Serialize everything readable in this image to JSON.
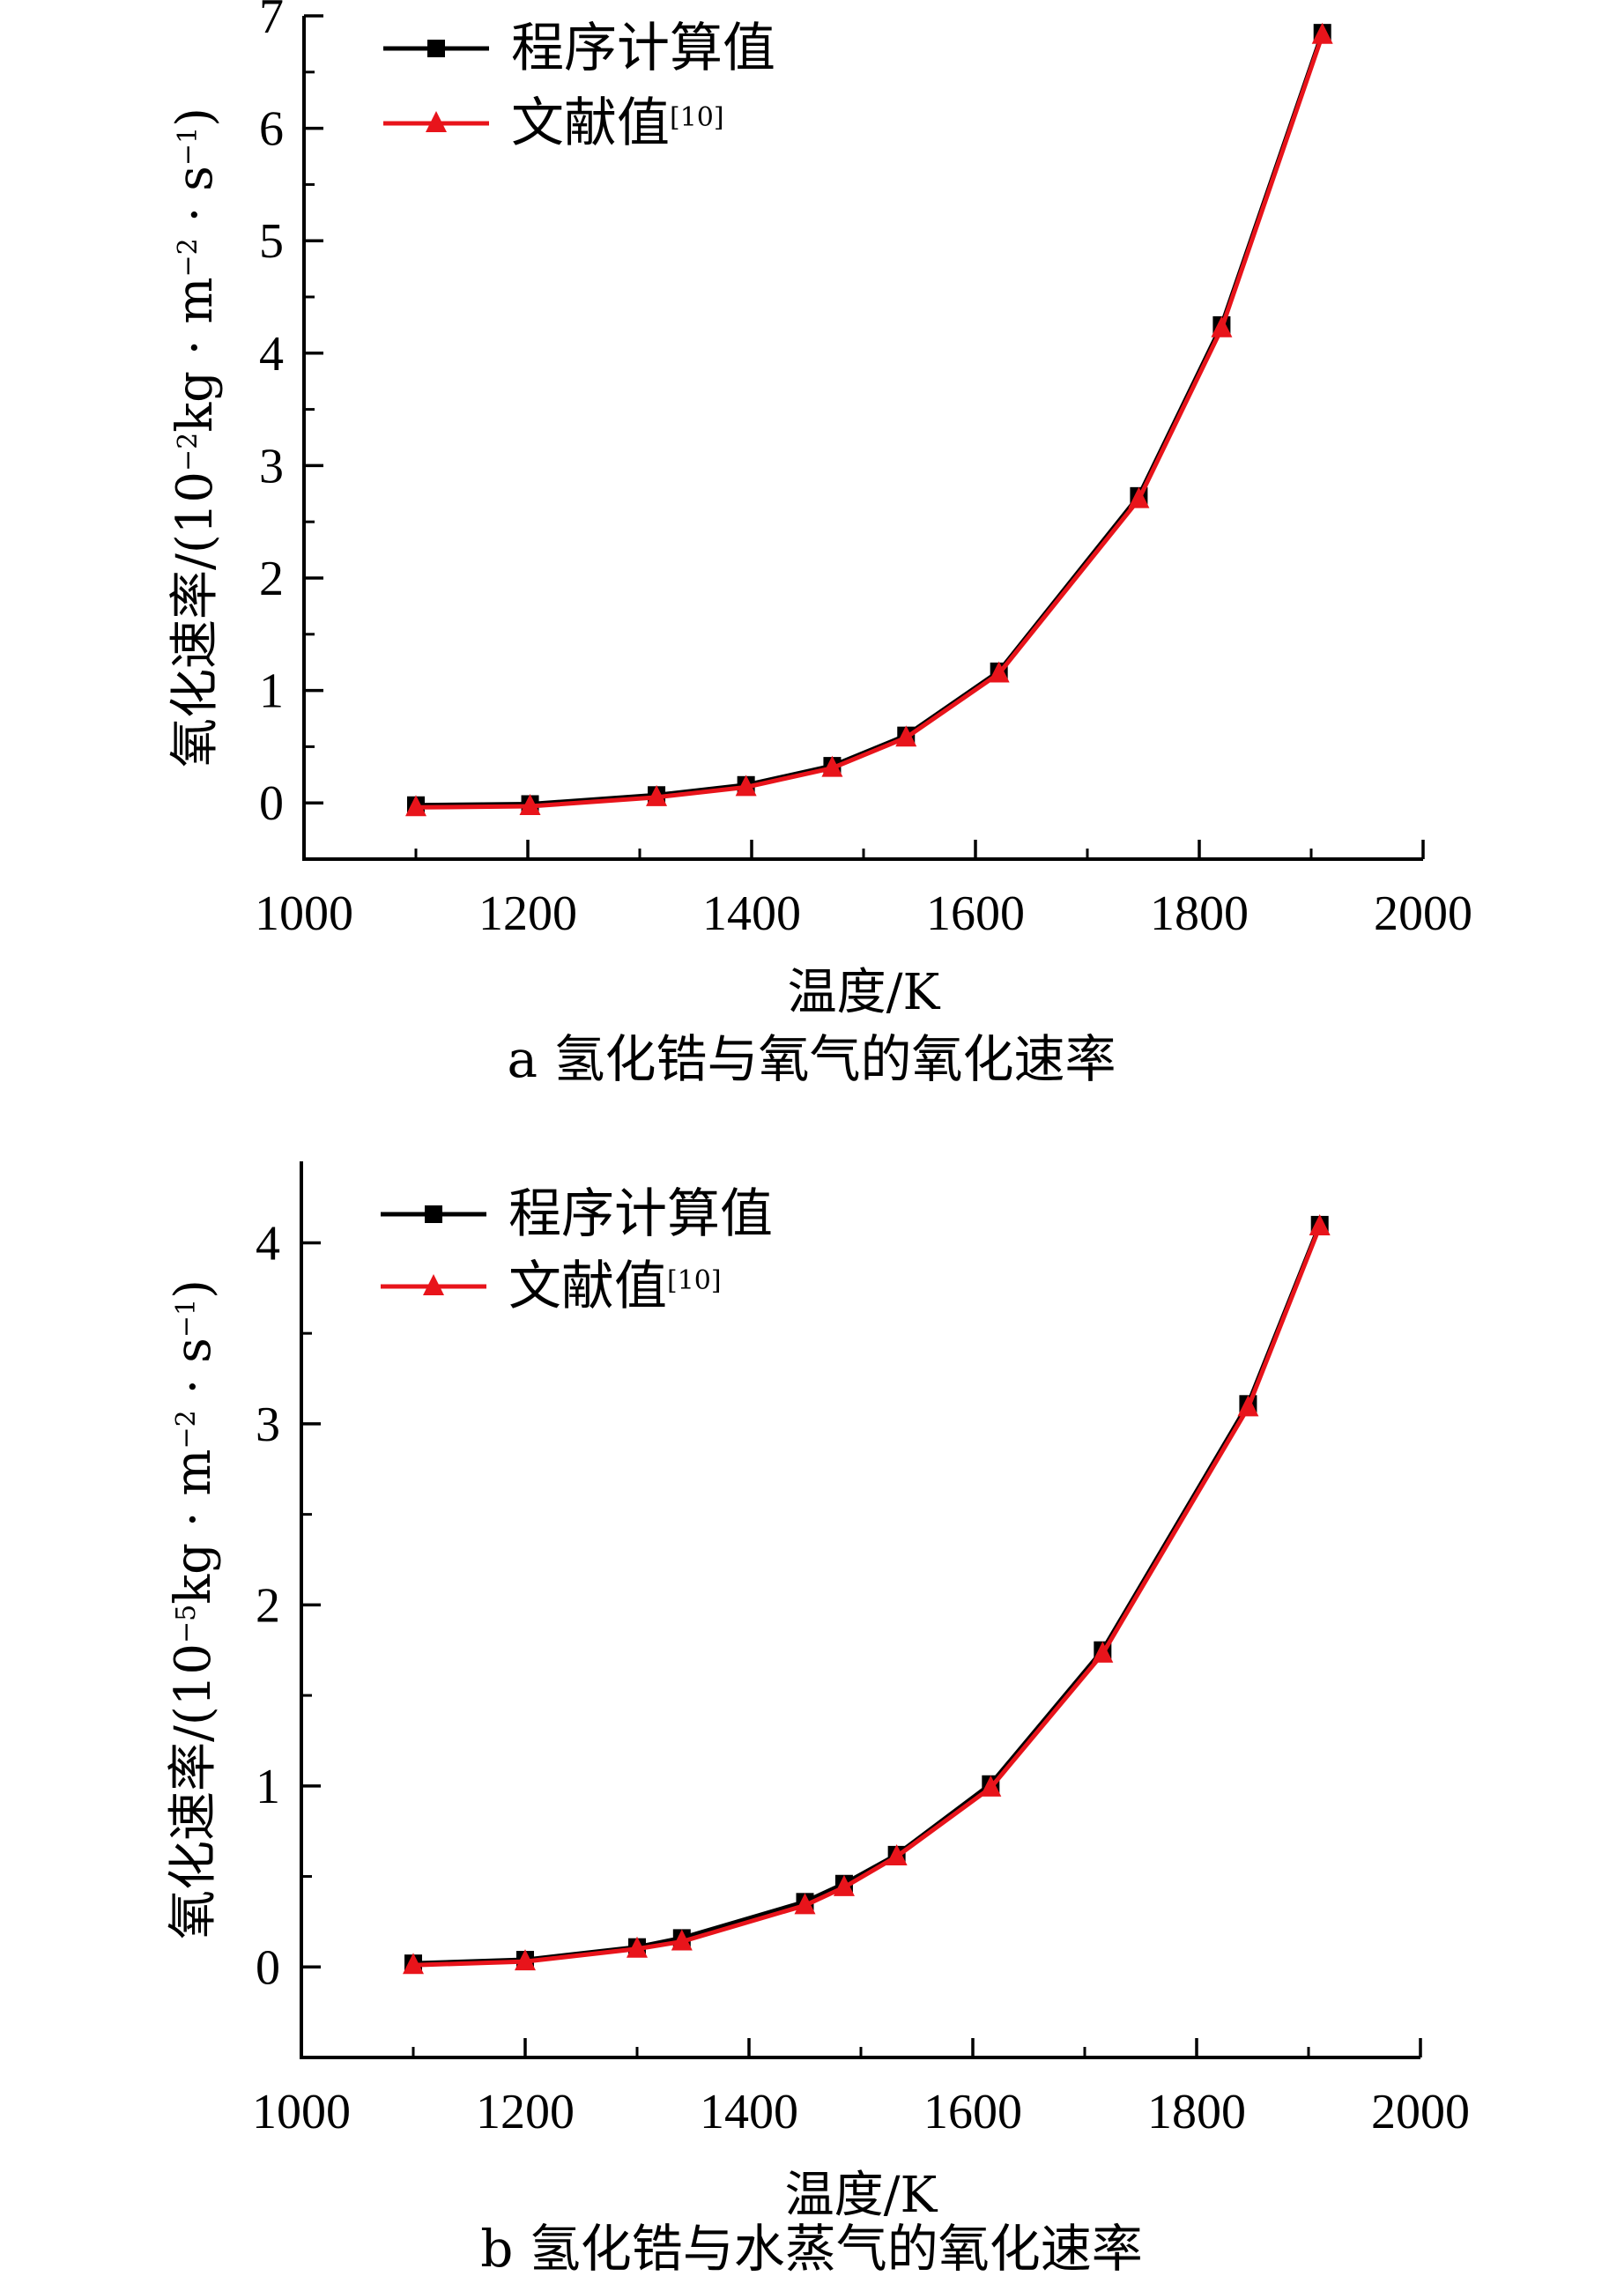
{
  "chart_data": [
    {
      "type": "line",
      "caption": "a  氢化锆与氧气的氧化速率",
      "xlabel": "温度/K",
      "ylabel_parts": [
        "氧化速率/(10",
        "−2",
        "kg · m",
        "−2",
        " · s",
        "−1",
        ")"
      ],
      "xlim": [
        1000,
        2000
      ],
      "ylim": [
        -0.5,
        7
      ],
      "xticks": [
        1000,
        1200,
        1400,
        1600,
        1800,
        2000
      ],
      "yticks": [
        0,
        1,
        2,
        3,
        4,
        5,
        6,
        7
      ],
      "legend_position": "top-left",
      "series": [
        {
          "name": "程序计算值",
          "marker": "square",
          "color": "#000000",
          "x": [
            1100,
            1202,
            1315,
            1395,
            1472,
            1538,
            1621,
            1746,
            1820,
            1910
          ],
          "y": [
            -0.02,
            -0.01,
            0.07,
            0.16,
            0.33,
            0.6,
            1.17,
            2.73,
            4.25,
            6.85
          ]
        },
        {
          "name": "文献值",
          "name_sup": "[10]",
          "marker": "triangle",
          "color": "#e8141b",
          "x": [
            1100,
            1202,
            1315,
            1395,
            1472,
            1538,
            1621,
            1746,
            1820,
            1910
          ],
          "y": [
            -0.04,
            -0.03,
            0.05,
            0.14,
            0.31,
            0.58,
            1.15,
            2.7,
            4.22,
            6.83
          ]
        }
      ]
    },
    {
      "type": "line",
      "caption": "b  氢化锆与水蒸气的氧化速率",
      "xlabel": "温度/K",
      "ylabel_parts": [
        "氧化速率/(10",
        "−5",
        "kg · m",
        "−2",
        " · s",
        "−1",
        ")"
      ],
      "xlim": [
        1000,
        2000
      ],
      "ylim": [
        -0.5,
        4.45
      ],
      "xticks": [
        1000,
        1200,
        1400,
        1600,
        1800,
        2000
      ],
      "yticks": [
        0,
        1,
        2,
        3,
        4
      ],
      "legend_position": "top-left",
      "series": [
        {
          "name": "程序计算值",
          "marker": "square",
          "color": "#000000",
          "x": [
            1100,
            1200,
            1300,
            1340,
            1450,
            1485,
            1532,
            1616,
            1716,
            1846,
            1910
          ],
          "y": [
            0.02,
            0.04,
            0.11,
            0.16,
            0.36,
            0.46,
            0.62,
            1.01,
            1.75,
            3.11,
            4.1
          ]
        },
        {
          "name": "文献值",
          "name_sup": "[10]",
          "marker": "triangle",
          "color": "#e8141b",
          "x": [
            1100,
            1200,
            1300,
            1340,
            1450,
            1485,
            1532,
            1616,
            1716,
            1846,
            1910
          ],
          "y": [
            0.01,
            0.03,
            0.1,
            0.14,
            0.34,
            0.44,
            0.61,
            0.99,
            1.73,
            3.09,
            4.09
          ]
        }
      ]
    }
  ]
}
